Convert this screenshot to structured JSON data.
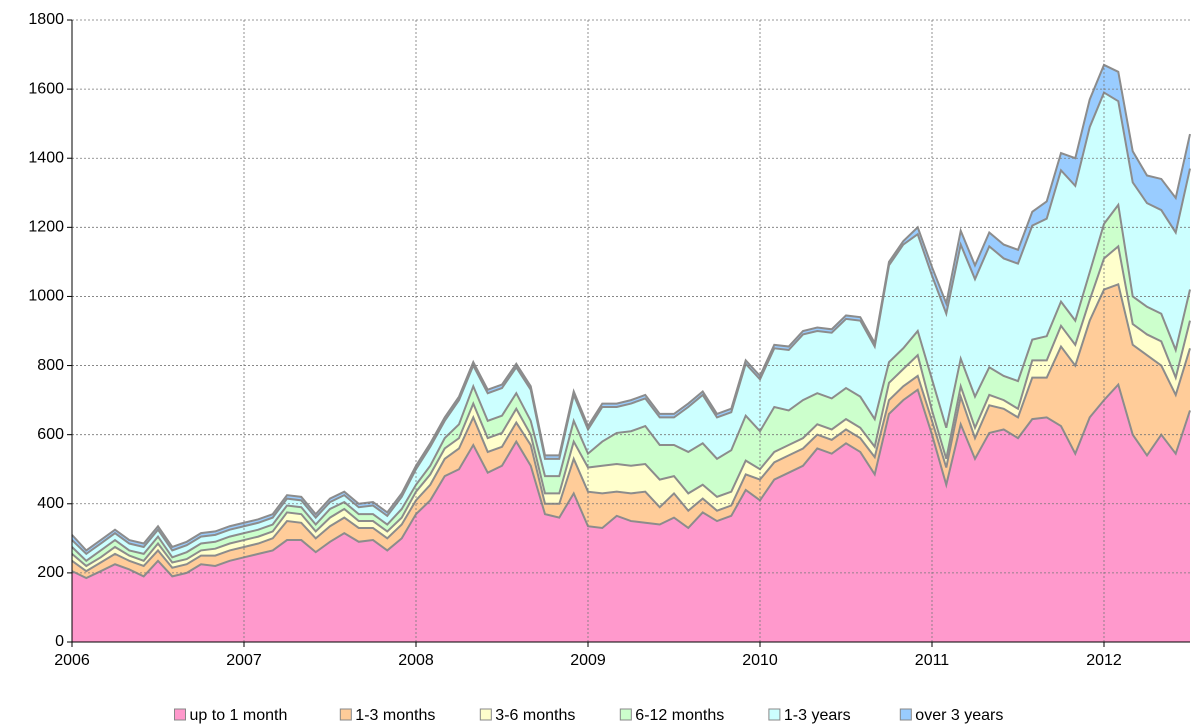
{
  "chart_data": {
    "type": "stacked_area",
    "x": [
      2006,
      2006.083,
      2006.167,
      2006.25,
      2006.333,
      2006.417,
      2006.5,
      2006.583,
      2006.667,
      2006.75,
      2006.833,
      2006.917,
      2007,
      2007.083,
      2007.167,
      2007.25,
      2007.333,
      2007.417,
      2007.5,
      2007.583,
      2007.667,
      2007.75,
      2007.833,
      2007.917,
      2008,
      2008.083,
      2008.167,
      2008.25,
      2008.333,
      2008.417,
      2008.5,
      2008.583,
      2008.667,
      2008.75,
      2008.833,
      2008.917,
      2009,
      2009.083,
      2009.167,
      2009.25,
      2009.333,
      2009.417,
      2009.5,
      2009.583,
      2009.667,
      2009.75,
      2009.833,
      2009.917,
      2010,
      2010.083,
      2010.167,
      2010.25,
      2010.333,
      2010.417,
      2010.5,
      2010.583,
      2010.667,
      2010.75,
      2010.833,
      2010.917,
      2011,
      2011.083,
      2011.167,
      2011.25,
      2011.333,
      2011.417,
      2011.5,
      2011.583,
      2011.667,
      2011.75,
      2011.833,
      2011.917,
      2012,
      2012.083,
      2012.167,
      2012.25,
      2012.333,
      2012.417,
      2012.5
    ],
    "series": [
      {
        "name": "up to 1 month",
        "color": "#ff99cc",
        "values": [
          205,
          185,
          205,
          225,
          210,
          190,
          235,
          190,
          200,
          225,
          220,
          235,
          245,
          255,
          265,
          295,
          295,
          260,
          290,
          315,
          290,
          295,
          265,
          300,
          370,
          410,
          480,
          500,
          570,
          490,
          510,
          580,
          510,
          370,
          360,
          430,
          335,
          330,
          365,
          350,
          345,
          340,
          360,
          330,
          375,
          350,
          365,
          440,
          410,
          470,
          490,
          510,
          560,
          545,
          575,
          550,
          485,
          660,
          700,
          730,
          600,
          455,
          630,
          530,
          605,
          615,
          590,
          645,
          650,
          625,
          545,
          650,
          700,
          745,
          600,
          540,
          600,
          545,
          670
        ]
      },
      {
        "name": "1-3 months",
        "color": "#ffcc99",
        "values": [
          30,
          20,
          25,
          30,
          25,
          30,
          30,
          25,
          25,
          25,
          30,
          30,
          30,
          30,
          35,
          55,
          50,
          40,
          45,
          45,
          40,
          35,
          35,
          40,
          40,
          45,
          50,
          60,
          80,
          60,
          55,
          55,
          60,
          30,
          40,
          100,
          100,
          100,
          70,
          80,
          90,
          50,
          70,
          50,
          40,
          30,
          30,
          45,
          60,
          50,
          50,
          50,
          40,
          40,
          40,
          40,
          50,
          40,
          40,
          40,
          40,
          50,
          80,
          60,
          80,
          60,
          60,
          120,
          115,
          230,
          255,
          280,
          320,
          290,
          260,
          290,
          200,
          170,
          180
        ]
      },
      {
        "name": "3-6 months",
        "color": "#ffffcc",
        "values": [
          20,
          15,
          15,
          20,
          15,
          15,
          20,
          15,
          15,
          15,
          20,
          20,
          20,
          20,
          20,
          25,
          25,
          20,
          25,
          25,
          20,
          20,
          20,
          20,
          25,
          30,
          30,
          30,
          40,
          40,
          40,
          40,
          30,
          30,
          30,
          50,
          70,
          80,
          80,
          80,
          80,
          80,
          50,
          50,
          40,
          40,
          40,
          40,
          30,
          30,
          30,
          30,
          30,
          30,
          30,
          30,
          30,
          50,
          50,
          60,
          30,
          25,
          30,
          30,
          30,
          25,
          25,
          50,
          50,
          60,
          60,
          60,
          90,
          110,
          60,
          60,
          70,
          50,
          80
        ]
      },
      {
        "name": "6-12 months",
        "color": "#ccffcc",
        "values": [
          20,
          15,
          20,
          20,
          15,
          20,
          20,
          15,
          20,
          20,
          20,
          20,
          20,
          20,
          20,
          20,
          20,
          20,
          25,
          20,
          20,
          20,
          20,
          25,
          20,
          25,
          30,
          40,
          50,
          50,
          50,
          45,
          40,
          50,
          50,
          60,
          40,
          70,
          90,
          100,
          110,
          100,
          90,
          120,
          120,
          110,
          120,
          130,
          110,
          130,
          100,
          110,
          90,
          90,
          90,
          90,
          80,
          60,
          60,
          70,
          90,
          90,
          80,
          90,
          80,
          70,
          80,
          60,
          70,
          70,
          70,
          80,
          100,
          120,
          80,
          80,
          80,
          80,
          90
        ]
      },
      {
        "name": "1-3 years",
        "color": "#ccffff",
        "values": [
          20,
          20,
          20,
          20,
          20,
          20,
          20,
          20,
          20,
          20,
          20,
          20,
          20,
          20,
          20,
          20,
          20,
          20,
          20,
          20,
          20,
          25,
          25,
          35,
          45,
          55,
          50,
          70,
          60,
          80,
          80,
          75,
          90,
          50,
          50,
          75,
          70,
          100,
          75,
          80,
          80,
          80,
          80,
          130,
          140,
          120,
          110,
          150,
          150,
          170,
          175,
          190,
          180,
          190,
          200,
          220,
          210,
          280,
          300,
          280,
          300,
          330,
          330,
          340,
          350,
          340,
          340,
          330,
          340,
          380,
          390,
          420,
          380,
          300,
          330,
          300,
          300,
          340,
          350
        ]
      },
      {
        "name": "over 3 years",
        "color": "#99ccff",
        "values": [
          15,
          10,
          10,
          10,
          10,
          10,
          10,
          10,
          10,
          10,
          10,
          10,
          10,
          10,
          10,
          10,
          10,
          10,
          10,
          10,
          10,
          10,
          10,
          10,
          10,
          10,
          10,
          10,
          10,
          10,
          10,
          10,
          10,
          10,
          10,
          10,
          10,
          10,
          10,
          10,
          10,
          10,
          10,
          10,
          10,
          10,
          10,
          10,
          10,
          10,
          10,
          10,
          10,
          10,
          10,
          10,
          10,
          10,
          10,
          20,
          25,
          30,
          40,
          40,
          40,
          40,
          40,
          40,
          50,
          50,
          80,
          80,
          80,
          85,
          90,
          80,
          90,
          100,
          100
        ]
      }
    ],
    "xlim": [
      2006,
      2012.5
    ],
    "xticks": [
      2006,
      2007,
      2008,
      2009,
      2010,
      2011,
      2012
    ],
    "ylim": [
      0,
      1800
    ],
    "yticks": [
      0,
      200,
      400,
      600,
      800,
      1000,
      1200,
      1400,
      1600,
      1800
    ],
    "grid": true,
    "legend": "bottom"
  }
}
